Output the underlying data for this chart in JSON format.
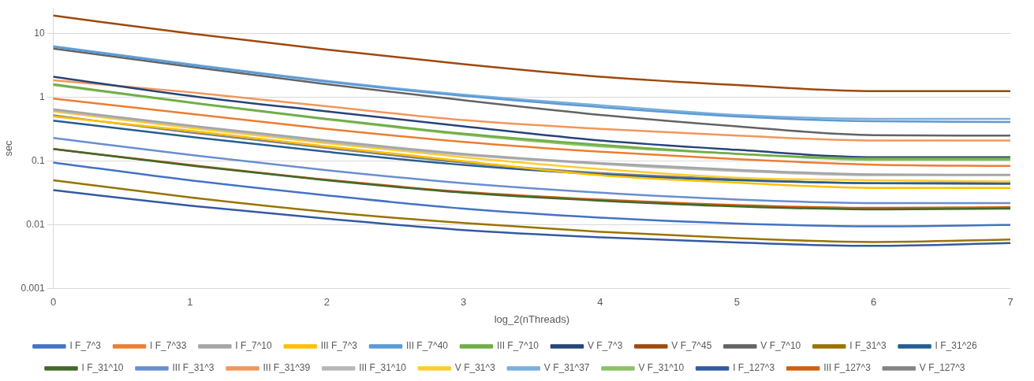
{
  "chart_data": {
    "type": "line",
    "xlabel": "log_2(nThreads)",
    "ylabel": "sec",
    "categories": [
      "0",
      "1",
      "2",
      "3",
      "4",
      "5",
      "6",
      "7"
    ],
    "log": "y",
    "ylim": [
      0.001,
      25
    ],
    "yticks": [
      0.001,
      0.01,
      0.1,
      1,
      10
    ],
    "grid": "y",
    "legend": "bottom",
    "marker": "none",
    "line_style": "solid",
    "series": [
      {
        "name": "I F_7^3",
        "color": "#4472c4",
        "values": [
          0.095,
          0.05,
          0.029,
          0.018,
          0.013,
          0.0105,
          0.0095,
          0.01
        ]
      },
      {
        "name": "I F_7^33",
        "color": "#ed7d31",
        "values": [
          0.95,
          0.55,
          0.32,
          0.2,
          0.14,
          0.107,
          0.088,
          0.084
        ]
      },
      {
        "name": "I F_7^10",
        "color": "#a5a5a5",
        "values": [
          0.65,
          0.36,
          0.21,
          0.13,
          0.093,
          0.073,
          0.062,
          0.061
        ]
      },
      {
        "name": "III F_7^3",
        "color": "#ffc000",
        "values": [
          0.5,
          0.3,
          0.17,
          0.1,
          0.06,
          0.046,
          0.038,
          0.038
        ]
      },
      {
        "name": "III F_7^40",
        "color": "#5b9bd5",
        "values": [
          6.2,
          3.2,
          1.75,
          1.05,
          0.7,
          0.5,
          0.42,
          0.41
        ]
      },
      {
        "name": "III F_7^10",
        "color": "#70ad47",
        "values": [
          1.6,
          0.83,
          0.46,
          0.27,
          0.18,
          0.13,
          0.11,
          0.11
        ]
      },
      {
        "name": "V F_7^3",
        "color": "#264478",
        "values": [
          2.1,
          1.05,
          0.6,
          0.35,
          0.21,
          0.15,
          0.115,
          0.115
        ]
      },
      {
        "name": "V F_7^45",
        "color": "#9e480e",
        "values": [
          19,
          10,
          5.6,
          3.3,
          2.1,
          1.55,
          1.25,
          1.25
        ]
      },
      {
        "name": "V F_7^10",
        "color": "#636363",
        "values": [
          5.8,
          3.0,
          1.6,
          0.9,
          0.53,
          0.35,
          0.255,
          0.25
        ]
      },
      {
        "name": "I F_31^3",
        "color": "#997300",
        "values": [
          0.05,
          0.027,
          0.016,
          0.0107,
          0.0078,
          0.0062,
          0.0054,
          0.0059
        ]
      },
      {
        "name": "I F_31^26",
        "color": "#255e91",
        "values": [
          0.43,
          0.24,
          0.14,
          0.087,
          0.062,
          0.05,
          0.045,
          0.044
        ]
      },
      {
        "name": "I F_31^10",
        "color": "#43682b",
        "values": [
          0.155,
          0.085,
          0.05,
          0.032,
          0.024,
          0.0195,
          0.0175,
          0.018
        ]
      },
      {
        "name": "III F_31^3",
        "color": "#698ed0",
        "values": [
          0.23,
          0.125,
          0.072,
          0.045,
          0.032,
          0.025,
          0.022,
          0.022
        ]
      },
      {
        "name": "III F_31^39",
        "color": "#f1975a",
        "values": [
          1.85,
          1.2,
          0.72,
          0.44,
          0.32,
          0.25,
          0.21,
          0.21
        ]
      },
      {
        "name": "III F_31^10",
        "color": "#b7b7b7",
        "values": [
          0.62,
          0.35,
          0.2,
          0.125,
          0.09,
          0.07,
          0.06,
          0.06
        ]
      },
      {
        "name": "V F_31^3",
        "color": "#ffcd33",
        "values": [
          0.6,
          0.33,
          0.19,
          0.115,
          0.075,
          0.055,
          0.05,
          0.048
        ]
      },
      {
        "name": "V F_31^37",
        "color": "#7cafdd",
        "values": [
          6.3,
          3.3,
          1.8,
          1.1,
          0.75,
          0.53,
          0.46,
          0.46
        ]
      },
      {
        "name": "V F_31^10",
        "color": "#8cc168",
        "values": [
          1.55,
          0.82,
          0.45,
          0.26,
          0.17,
          0.13,
          0.105,
          0.105
        ]
      },
      {
        "name": "I F_127^3",
        "color": "#335aa1",
        "values": [
          0.035,
          0.02,
          0.0125,
          0.0083,
          0.0064,
          0.0053,
          0.0047,
          0.0052
        ]
      },
      {
        "name": "III F_127^3",
        "color": "#d26012",
        "values": [
          0.155,
          0.087,
          0.051,
          0.033,
          0.025,
          0.0205,
          0.0185,
          0.019
        ]
      },
      {
        "name": "V F_127^3",
        "color": "#848484",
        "values": [
          0.52,
          0.28,
          0.16,
          0.095,
          0.065,
          0.052,
          0.045,
          0.046
        ]
      }
    ]
  }
}
